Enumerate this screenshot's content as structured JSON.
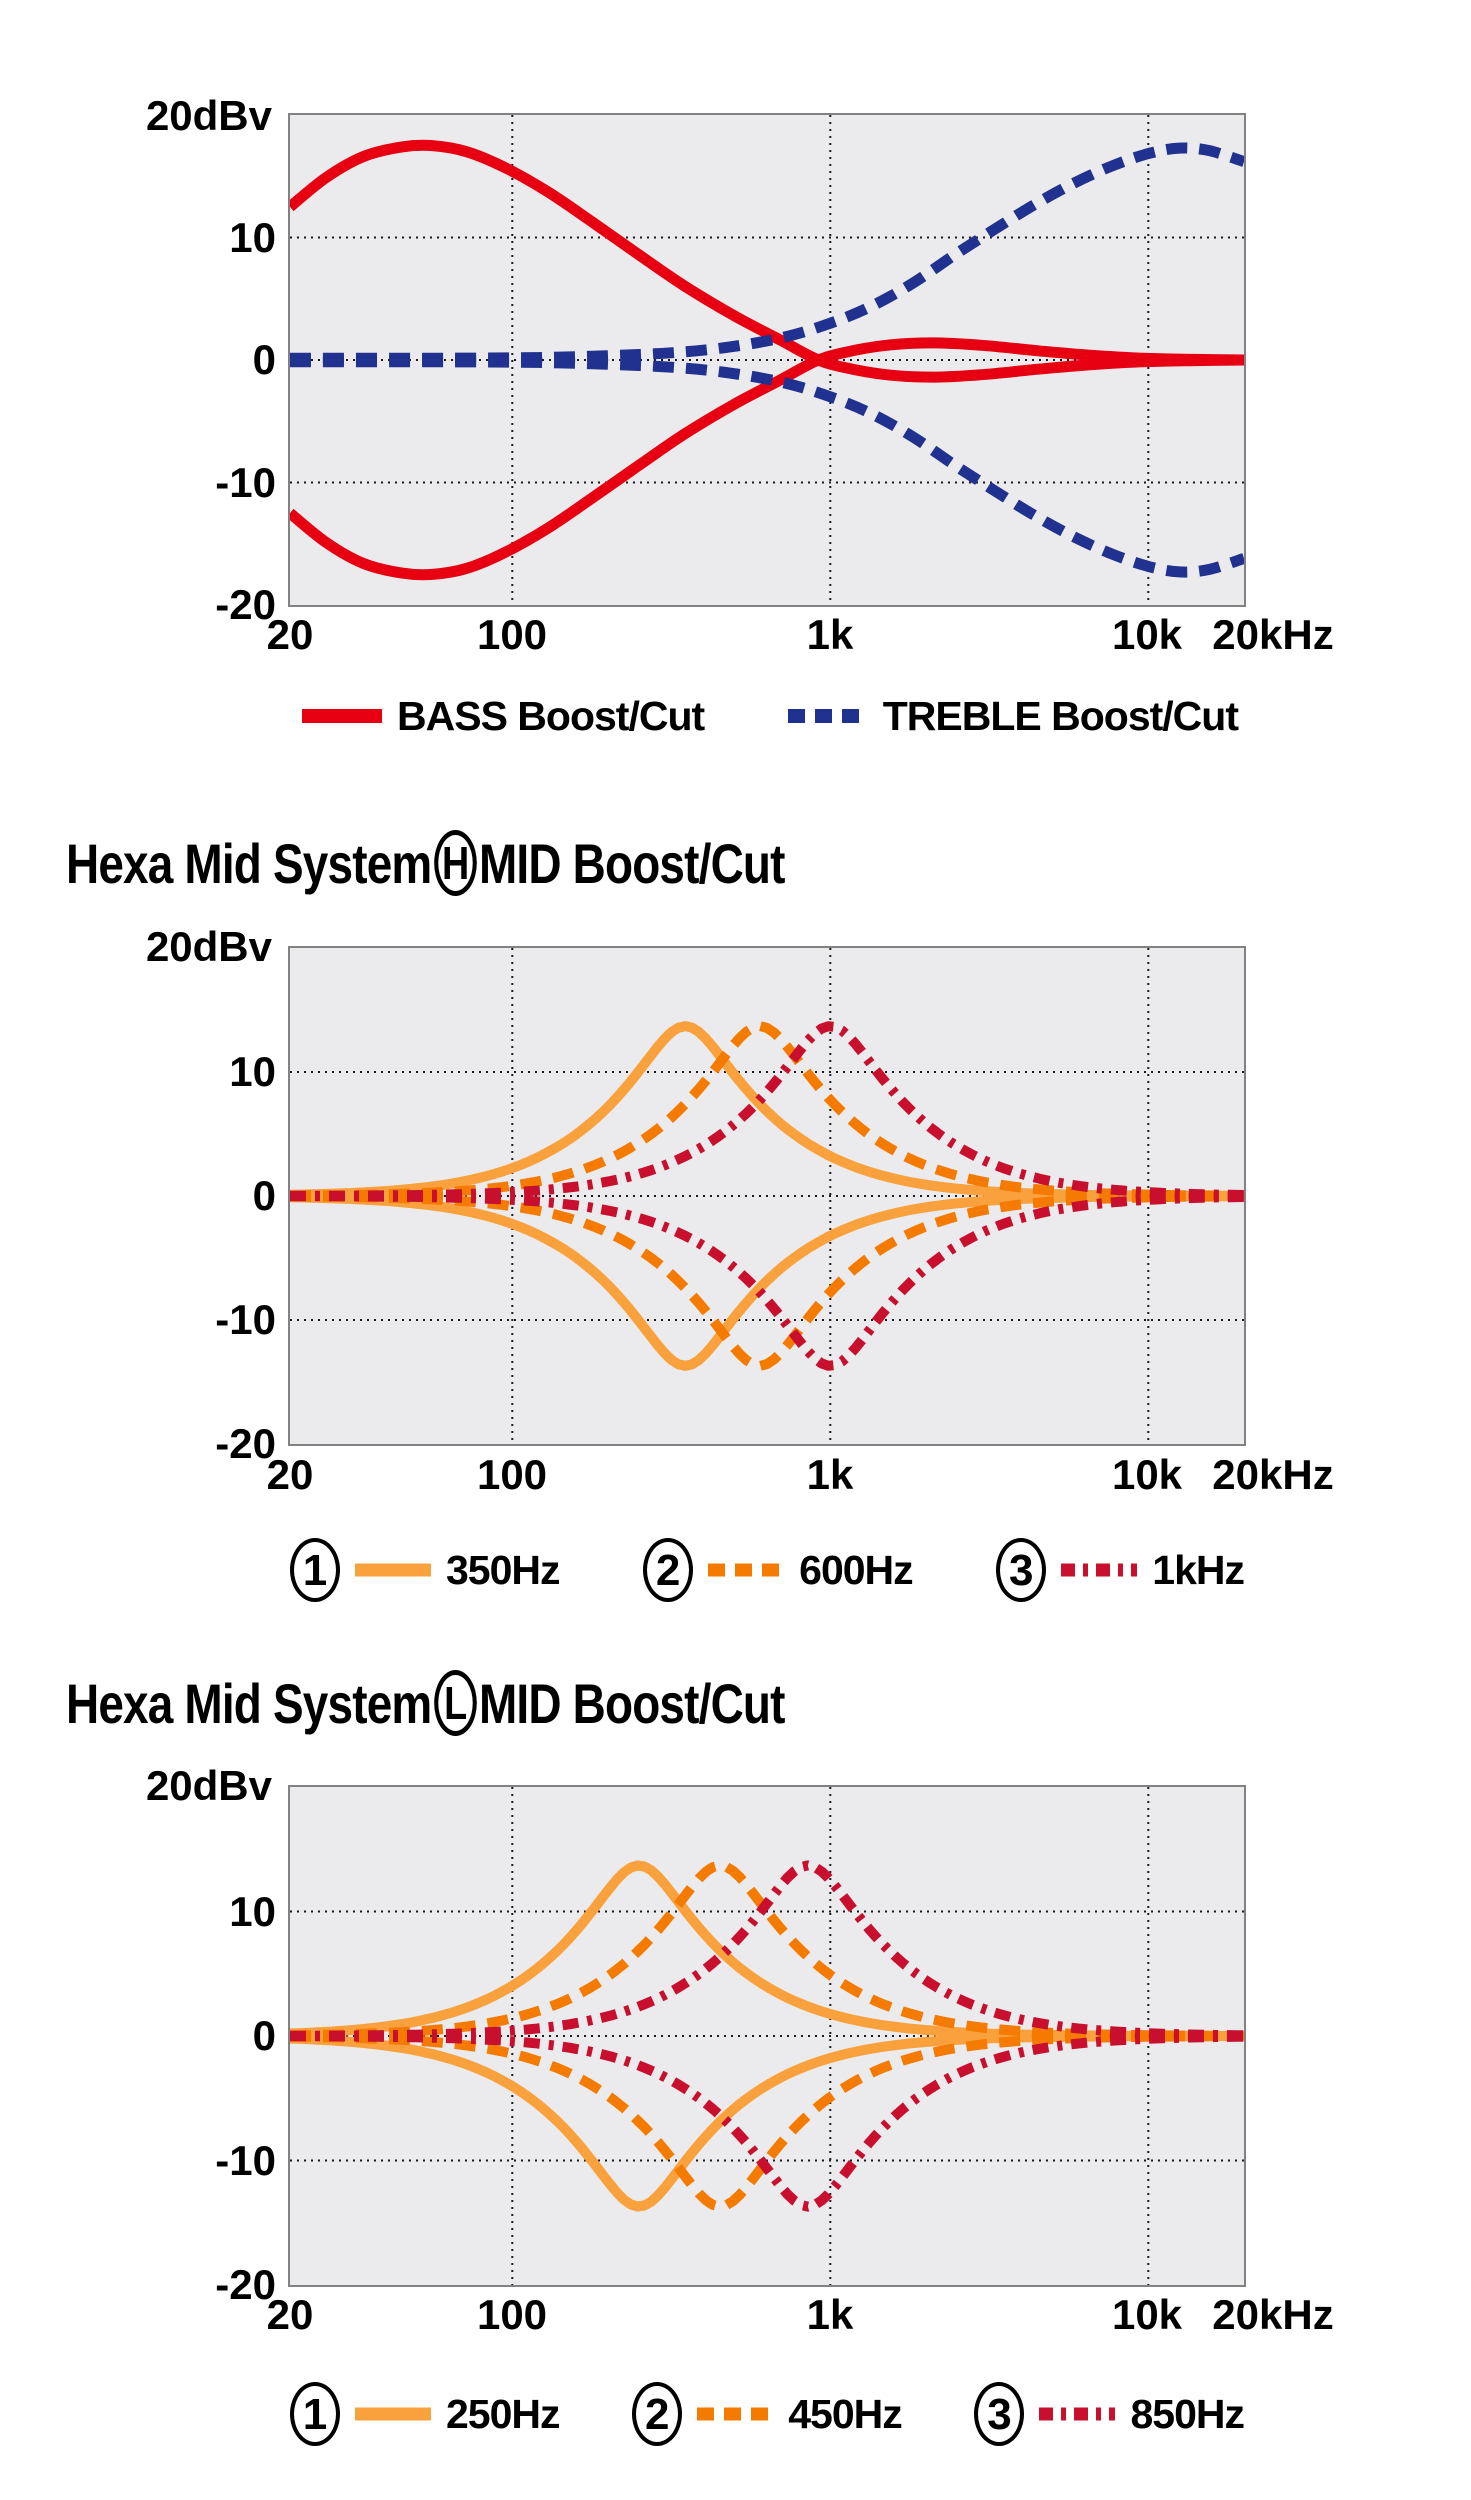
{
  "page": {
    "background": "#ffffff",
    "text_color": "#000000"
  },
  "style": {
    "plot_bg": "#ebebed",
    "plot_border": "#828282",
    "grid_color": "#1a1a1a",
    "curve_stroke_widths": [
      11,
      10,
      10
    ],
    "colors": {
      "bass_red": "#e60012",
      "treble_navy": "#20318f",
      "mid_band1_orange": "#f9a13c",
      "mid_band2_orange": "#f57a00",
      "mid_band3_crimson": "#c8102e"
    }
  },
  "chart_data": [
    {
      "type": "line",
      "title": null,
      "x_axis": {
        "scale": "log",
        "min_hz": 20,
        "max_hz": 20000,
        "ticks": [
          {
            "hz": 20,
            "label": "20"
          },
          {
            "hz": 100,
            "label": "100"
          },
          {
            "hz": 1000,
            "label": "1k"
          },
          {
            "hz": 10000,
            "label": "10k"
          },
          {
            "hz": 20000,
            "label": "20kHz"
          }
        ],
        "gridlines_hz": [
          100,
          1000,
          10000
        ]
      },
      "y_axis": {
        "unit_label": "20dBv",
        "min": -20,
        "max": 20,
        "ticks": [
          "10",
          "0",
          "-10",
          "-20"
        ],
        "gridlines_db": [
          10,
          0,
          -10
        ]
      },
      "series": [
        {
          "name": "BASS Boost/Cut",
          "color": "#e60012",
          "line_style": "solid",
          "model": "points",
          "cut": "mirror_of_boost",
          "boost_points": [
            [
              20,
              12.5
            ],
            [
              26,
              14.9
            ],
            [
              34,
              16.6
            ],
            [
              45,
              17.4
            ],
            [
              56,
              17.5
            ],
            [
              72,
              17.0
            ],
            [
              95,
              15.7
            ],
            [
              130,
              13.7
            ],
            [
              180,
              11.2
            ],
            [
              250,
              8.6
            ],
            [
              350,
              6.0
            ],
            [
              500,
              3.6
            ],
            [
              700,
              1.6
            ],
            [
              900,
              0.1
            ],
            [
              1100,
              -0.6
            ],
            [
              1500,
              -1.2
            ],
            [
              2100,
              -1.4
            ],
            [
              3000,
              -1.2
            ],
            [
              4500,
              -0.75
            ],
            [
              6500,
              -0.4
            ],
            [
              9500,
              -0.15
            ],
            [
              14000,
              -0.05
            ],
            [
              20000,
              0
            ]
          ]
        },
        {
          "name": "TREBLE Boost/Cut",
          "color": "#20318f",
          "line_style": "dashed",
          "model": "points",
          "cut": "mirror_of_boost",
          "boost_points": [
            [
              20,
              0.15
            ],
            [
              60,
              0.15
            ],
            [
              120,
              0.2
            ],
            [
              200,
              0.35
            ],
            [
              320,
              0.6
            ],
            [
              480,
              1.05
            ],
            [
              700,
              1.8
            ],
            [
              950,
              2.8
            ],
            [
              1300,
              4.2
            ],
            [
              1800,
              6.2
            ],
            [
              2500,
              8.7
            ],
            [
              3300,
              10.7
            ],
            [
              4400,
              12.7
            ],
            [
              5900,
              14.5
            ],
            [
              7800,
              15.9
            ],
            [
              10000,
              16.85
            ],
            [
              12500,
              17.3
            ],
            [
              15500,
              17.1
            ],
            [
              20000,
              16.2
            ]
          ]
        }
      ]
    },
    {
      "type": "line",
      "title": {
        "prefix": "Hexa Mid System",
        "badge": "H",
        "suffix": "MID Boost/Cut"
      },
      "x_axis": {
        "scale": "log",
        "min_hz": 20,
        "max_hz": 20000,
        "ticks": [
          {
            "hz": 20,
            "label": "20"
          },
          {
            "hz": 100,
            "label": "100"
          },
          {
            "hz": 1000,
            "label": "1k"
          },
          {
            "hz": 10000,
            "label": "10k"
          },
          {
            "hz": 20000,
            "label": "20kHz"
          }
        ],
        "gridlines_hz": [
          100,
          1000,
          10000
        ]
      },
      "y_axis": {
        "unit_label": "20dBv",
        "min": -20,
        "max": 20,
        "ticks": [
          "10",
          "0",
          "-10",
          "-20"
        ],
        "gridlines_db": [
          10,
          0,
          -10
        ]
      },
      "series": [
        {
          "legend_number": "1",
          "name": "350Hz",
          "color": "#f9a13c",
          "line_style": "solid",
          "model": "peaking",
          "filter": {
            "f0_hz": 350,
            "gain_db": 13.7,
            "cut_gain_db": -13.7,
            "q": 0.8
          }
        },
        {
          "legend_number": "2",
          "name": "600Hz",
          "color": "#f57a00",
          "line_style": "dashed",
          "model": "peaking",
          "filter": {
            "f0_hz": 600,
            "gain_db": 13.7,
            "cut_gain_db": -13.7,
            "q": 0.8
          }
        },
        {
          "legend_number": "3",
          "name": "1kHz",
          "color": "#c8102e",
          "line_style": "dash-dot",
          "model": "peaking",
          "filter": {
            "f0_hz": 1000,
            "gain_db": 13.7,
            "cut_gain_db": -13.7,
            "q": 0.8
          }
        }
      ]
    },
    {
      "type": "line",
      "title": {
        "prefix": "Hexa Mid System",
        "badge": "L",
        "suffix": "MID Boost/Cut"
      },
      "x_axis": {
        "scale": "log",
        "min_hz": 20,
        "max_hz": 20000,
        "ticks": [
          {
            "hz": 20,
            "label": "20"
          },
          {
            "hz": 100,
            "label": "100"
          },
          {
            "hz": 1000,
            "label": "1k"
          },
          {
            "hz": 10000,
            "label": "10k"
          },
          {
            "hz": 20000,
            "label": "20kHz"
          }
        ],
        "gridlines_hz": [
          100,
          1000,
          10000
        ]
      },
      "y_axis": {
        "unit_label": "20dBv",
        "min": -20,
        "max": 20,
        "ticks": [
          "10",
          "0",
          "-10",
          "-20"
        ],
        "gridlines_db": [
          10,
          0,
          -10
        ]
      },
      "series": [
        {
          "legend_number": "1",
          "name": "250Hz",
          "color": "#f9a13c",
          "line_style": "solid",
          "model": "peaking",
          "filter": {
            "f0_hz": 250,
            "gain_db": 13.7,
            "cut_gain_db": -13.7,
            "q": 0.8
          }
        },
        {
          "legend_number": "2",
          "name": "450Hz",
          "color": "#f57a00",
          "line_style": "dashed",
          "model": "peaking",
          "filter": {
            "f0_hz": 450,
            "gain_db": 13.7,
            "cut_gain_db": -13.7,
            "q": 0.8
          }
        },
        {
          "legend_number": "3",
          "name": "850Hz",
          "color": "#c8102e",
          "line_style": "dash-dot",
          "model": "peaking",
          "filter": {
            "f0_hz": 850,
            "gain_db": 13.7,
            "cut_gain_db": -13.7,
            "q": 0.8
          }
        }
      ]
    }
  ]
}
